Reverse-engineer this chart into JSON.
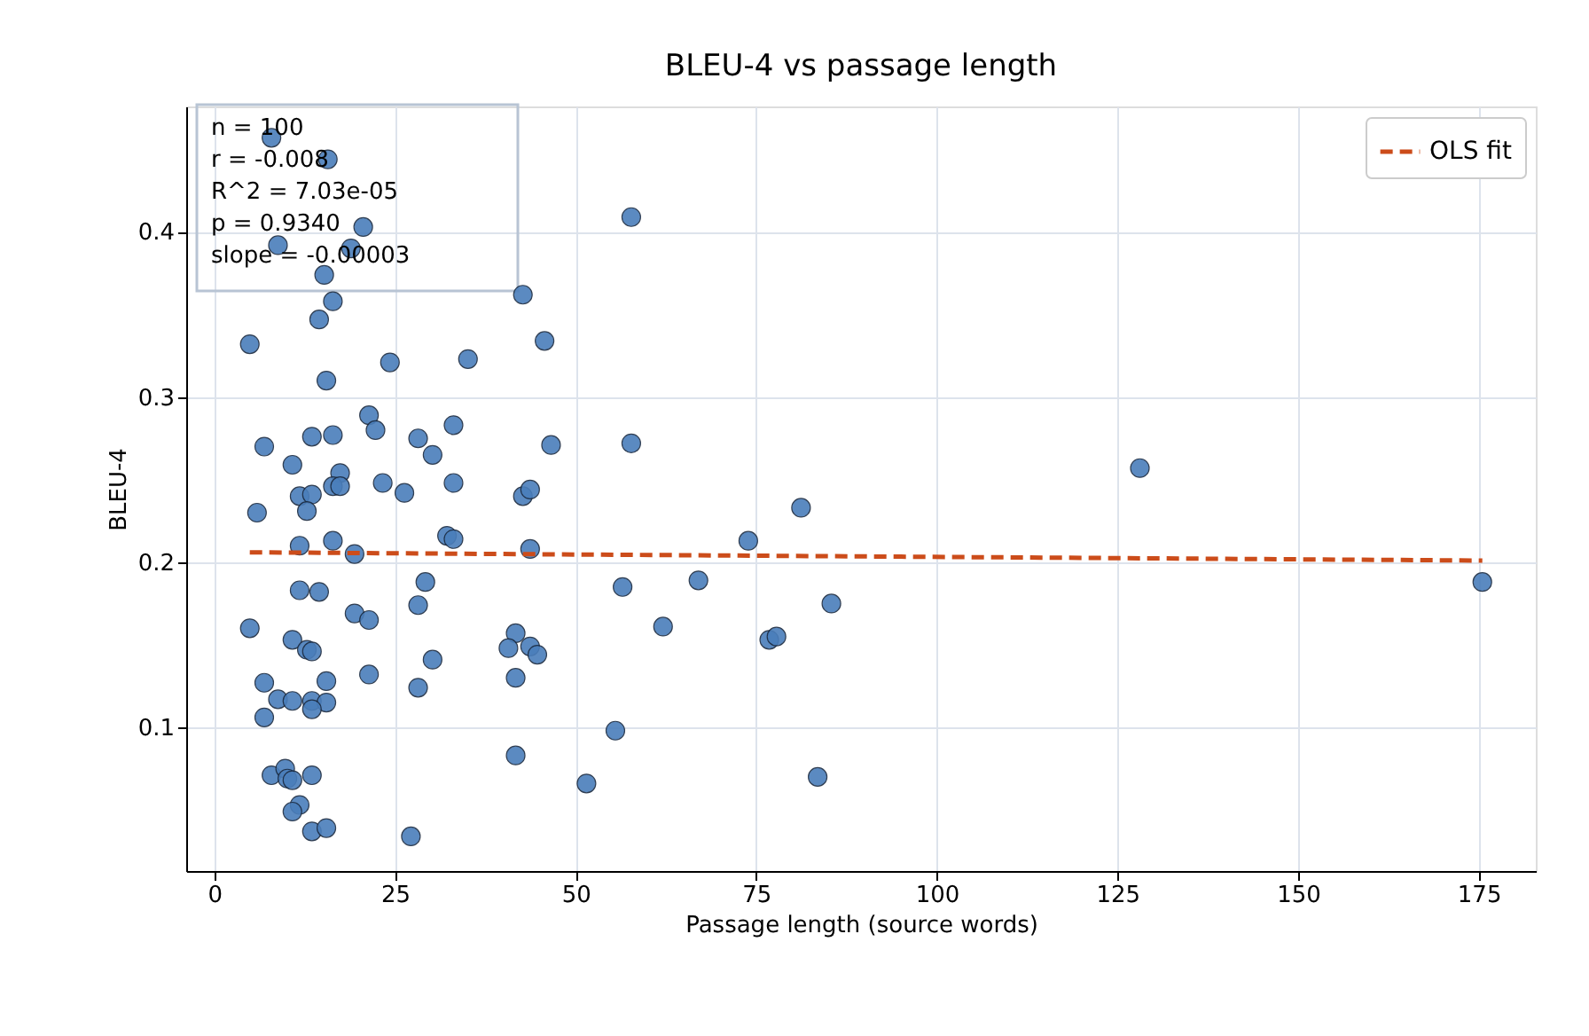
{
  "chart_data": {
    "type": "scatter",
    "title": "BLEU-4 vs passage length",
    "xlabel": "Passage length (source words)",
    "ylabel": "BLEU-4",
    "xlim": [
      -3.9,
      182.9
    ],
    "ylim": [
      0.013,
      0.476
    ],
    "xticks": [
      0,
      25,
      50,
      75,
      100,
      125,
      150,
      175
    ],
    "yticks": [
      0.1,
      0.2,
      0.3,
      0.4
    ],
    "grid": true,
    "legend": "top right",
    "marker": "circle",
    "annotations": [
      "n = 100",
      "r = -0.008",
      "R^2 = 7.03e-05",
      "p = 0.9340",
      "slope = -0.00003"
    ],
    "series": [
      {
        "type": "scatter",
        "color": "#4a7ebb",
        "x": [
          4.9,
          7.9,
          15.7,
          8.8,
          20.6,
          18.9,
          15.2,
          16.4,
          14.5,
          42.7,
          45.7,
          24.3,
          35.1,
          15.5,
          21.4,
          22.3,
          33.1,
          6.9,
          13.5,
          16.4,
          28.2,
          30.2,
          46.6,
          10.8,
          17.4,
          16.4,
          17.4,
          11.8,
          13.5,
          12.8,
          5.9,
          23.3,
          26.3,
          33.1,
          42.7,
          43.7,
          11.8,
          16.4,
          19.4,
          32.2,
          33.1,
          43.7,
          11.8,
          14.5,
          29.2,
          28.2,
          19.4,
          21.4,
          4.9,
          10.8,
          12.8,
          13.5,
          41.7,
          40.7,
          43.7,
          44.7,
          30.2,
          21.4,
          28.2,
          41.7,
          6.9,
          15.5,
          8.8,
          10.8,
          13.5,
          15.5,
          13.5,
          6.9,
          41.7,
          7.9,
          9.8,
          10.1,
          13.5,
          10.8,
          11.8,
          10.8,
          13.5,
          15.5,
          27.2,
          51.5,
          57.7,
          57.7,
          81.2,
          73.9,
          56.5,
          67.0,
          85.4,
          62.1,
          76.8,
          77.8,
          55.5,
          83.5,
          128.1,
          175.5
        ],
        "values": [
          0.332,
          0.457,
          0.444,
          0.392,
          0.403,
          0.39,
          0.374,
          0.358,
          0.347,
          0.362,
          0.334,
          0.321,
          0.323,
          0.31,
          0.289,
          0.28,
          0.283,
          0.27,
          0.276,
          0.277,
          0.275,
          0.265,
          0.271,
          0.259,
          0.254,
          0.246,
          0.246,
          0.24,
          0.241,
          0.231,
          0.23,
          0.248,
          0.242,
          0.248,
          0.24,
          0.244,
          0.21,
          0.213,
          0.205,
          0.216,
          0.214,
          0.208,
          0.183,
          0.182,
          0.188,
          0.174,
          0.169,
          0.165,
          0.16,
          0.153,
          0.147,
          0.146,
          0.157,
          0.148,
          0.149,
          0.144,
          0.141,
          0.132,
          0.124,
          0.13,
          0.127,
          0.128,
          0.117,
          0.116,
          0.116,
          0.115,
          0.111,
          0.106,
          0.083,
          0.071,
          0.075,
          0.069,
          0.071,
          0.068,
          0.053,
          0.049,
          0.037,
          0.039,
          0.034,
          0.066,
          0.409,
          0.272,
          0.233,
          0.213,
          0.185,
          0.189,
          0.175,
          0.161,
          0.153,
          0.155,
          0.098,
          0.07,
          0.257,
          0.188
        ]
      },
      {
        "type": "line",
        "name": "OLS fit",
        "color": "#cc4c1a",
        "line_style": "dashed",
        "marker": "none",
        "x": [
          4.9,
          175.5
        ],
        "values": [
          0.206,
          0.201
        ]
      }
    ]
  }
}
